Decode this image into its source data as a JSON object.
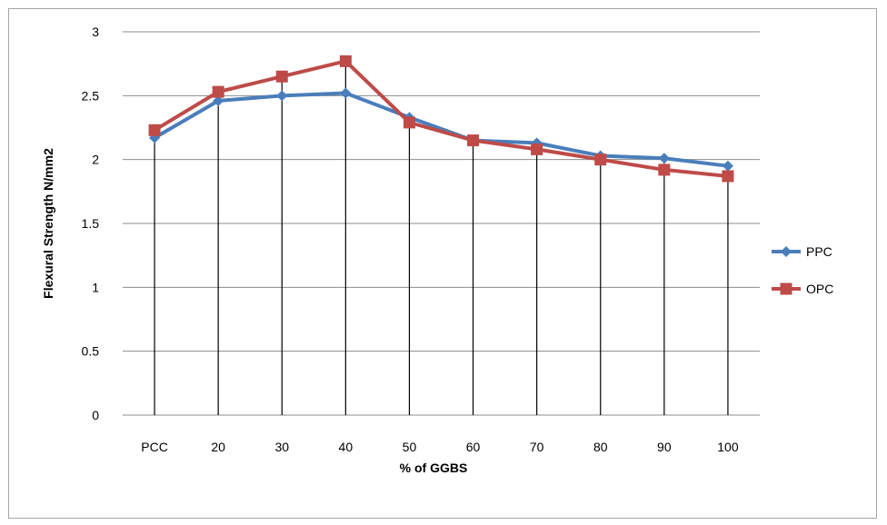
{
  "chart_data": {
    "type": "line",
    "title": "",
    "xlabel": "% of GGBS",
    "ylabel": "Flexural Strength N/mm2",
    "categories": [
      "PCC",
      "20",
      "30",
      "40",
      "50",
      "60",
      "70",
      "80",
      "90",
      "100"
    ],
    "ylim": [
      0,
      3
    ],
    "yticks": [
      "0",
      "0.5",
      "1",
      "1.5",
      "2",
      "2.5",
      "3"
    ],
    "grid": "horizontal",
    "drop_lines": true,
    "legend_position": "right",
    "series": [
      {
        "name": "PPC",
        "color": "#4a7ebb",
        "marker": "diamond",
        "values": [
          2.17,
          2.46,
          2.5,
          2.52,
          2.33,
          2.15,
          2.13,
          2.03,
          2.01,
          1.95
        ]
      },
      {
        "name": "OPC",
        "color": "#be4b48",
        "marker": "square",
        "values": [
          2.23,
          2.53,
          2.65,
          2.77,
          2.29,
          2.15,
          2.08,
          2.0,
          1.92,
          1.87
        ]
      }
    ]
  }
}
